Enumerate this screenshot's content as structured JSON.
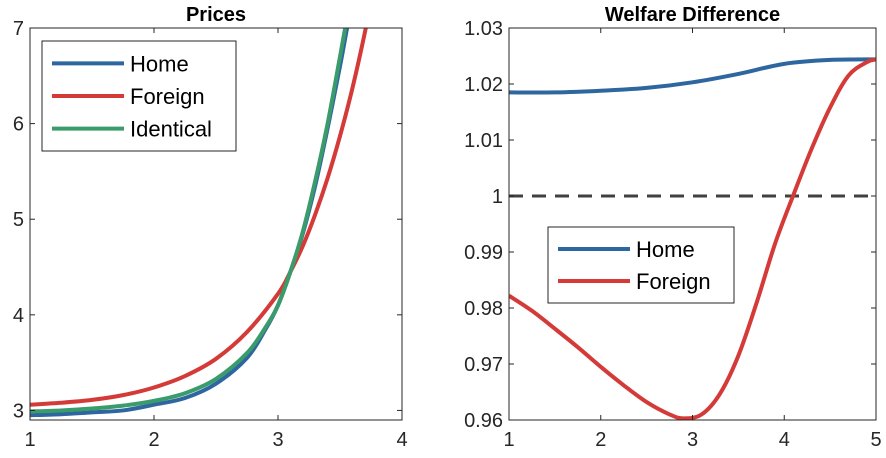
{
  "chart_data": [
    {
      "type": "line",
      "title": "Prices",
      "xlabel": "",
      "ylabel": "",
      "xlim": [
        1,
        4
      ],
      "ylim": [
        2.9,
        7
      ],
      "xticks": [
        1,
        2,
        3,
        4
      ],
      "xtick_labels": [
        "1",
        "2",
        "3",
        "4"
      ],
      "yticks": [
        3,
        4,
        5,
        6,
        7
      ],
      "ytick_labels": [
        "3",
        "4",
        "5",
        "6",
        "7"
      ],
      "legend": {
        "placement": "top-left",
        "entries": [
          "Home",
          "Foreign",
          "Identical"
        ]
      },
      "series": [
        {
          "name": "Home",
          "color": "#2E67A0",
          "x": [
            1,
            1.25,
            1.5,
            1.75,
            2,
            2.25,
            2.5,
            2.75,
            2.9,
            3,
            3.1,
            3.2,
            3.3,
            3.4,
            3.5,
            3.55,
            3.6
          ],
          "y": [
            2.95,
            2.96,
            2.98,
            3.0,
            3.06,
            3.13,
            3.28,
            3.55,
            3.85,
            4.1,
            4.45,
            4.85,
            5.35,
            5.95,
            6.6,
            6.95,
            7.3
          ]
        },
        {
          "name": "Foreign",
          "color": "#D33A38",
          "x": [
            1,
            1.25,
            1.5,
            1.75,
            2,
            2.25,
            2.5,
            2.75,
            3,
            3.1,
            3.2,
            3.3,
            3.4,
            3.5,
            3.6,
            3.7,
            3.75
          ],
          "y": [
            3.06,
            3.08,
            3.11,
            3.16,
            3.24,
            3.36,
            3.54,
            3.82,
            4.22,
            4.45,
            4.72,
            5.05,
            5.43,
            5.87,
            6.37,
            6.95,
            7.3
          ]
        },
        {
          "name": "Identical",
          "color": "#3A9B6B",
          "x": [
            1,
            1.25,
            1.5,
            1.75,
            2,
            2.25,
            2.5,
            2.75,
            2.9,
            3,
            3.1,
            3.2,
            3.3,
            3.4,
            3.5,
            3.55,
            3.6
          ],
          "y": [
            2.99,
            3.0,
            3.02,
            3.05,
            3.1,
            3.18,
            3.33,
            3.6,
            3.87,
            4.1,
            4.45,
            4.87,
            5.4,
            6.0,
            6.7,
            7.05,
            7.3
          ]
        }
      ]
    },
    {
      "type": "line",
      "title": "Welfare Difference",
      "xlabel": "",
      "ylabel": "",
      "xlim": [
        1,
        5
      ],
      "ylim": [
        0.96,
        1.03
      ],
      "xticks": [
        1,
        2,
        3,
        4,
        5
      ],
      "xtick_labels": [
        "1",
        "2",
        "3",
        "4",
        "5"
      ],
      "yticks": [
        0.96,
        0.97,
        0.98,
        0.99,
        1,
        1.01,
        1.02,
        1.03
      ],
      "ytick_labels": [
        "0.96",
        "0.97",
        "0.98",
        "0.99",
        "1",
        "1.01",
        "1.02",
        "1.03"
      ],
      "reference_line": {
        "y": 1,
        "style": "dashed",
        "color": "#404040"
      },
      "legend": {
        "placement": "center-left",
        "entries": [
          "Home",
          "Foreign"
        ]
      },
      "series": [
        {
          "name": "Home",
          "color": "#2E67A0",
          "x": [
            1,
            1.5,
            2,
            2.5,
            3,
            3.5,
            4,
            4.5,
            5
          ],
          "y": [
            1.0185,
            1.0185,
            1.0188,
            1.0193,
            1.0203,
            1.0218,
            1.0236,
            1.0243,
            1.0244
          ]
        },
        {
          "name": "Foreign",
          "color": "#D33A38",
          "x": [
            1,
            1.25,
            1.5,
            1.75,
            2,
            2.25,
            2.5,
            2.75,
            2.9,
            3.1,
            3.3,
            3.5,
            3.7,
            3.9,
            4.1,
            4.3,
            4.5,
            4.7,
            4.9,
            5
          ],
          "y": [
            0.9822,
            0.9795,
            0.9763,
            0.973,
            0.9695,
            0.9662,
            0.9632,
            0.961,
            0.9603,
            0.961,
            0.9647,
            0.9715,
            0.981,
            0.9915,
            1.0002,
            1.0085,
            1.0158,
            1.0215,
            1.0239,
            1.0244
          ]
        }
      ]
    }
  ]
}
